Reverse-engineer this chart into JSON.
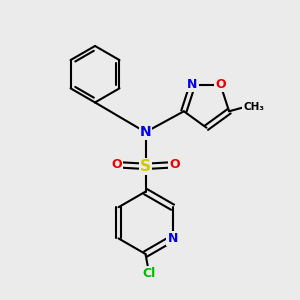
{
  "background_color": "#ebebeb",
  "atom_colors": {
    "C": "#000000",
    "N": "#0000ee",
    "O": "#ee0000",
    "S": "#cccc00",
    "Cl": "#00bb00",
    "H": "#000000"
  },
  "figsize": [
    3.0,
    3.0
  ],
  "dpi": 100
}
